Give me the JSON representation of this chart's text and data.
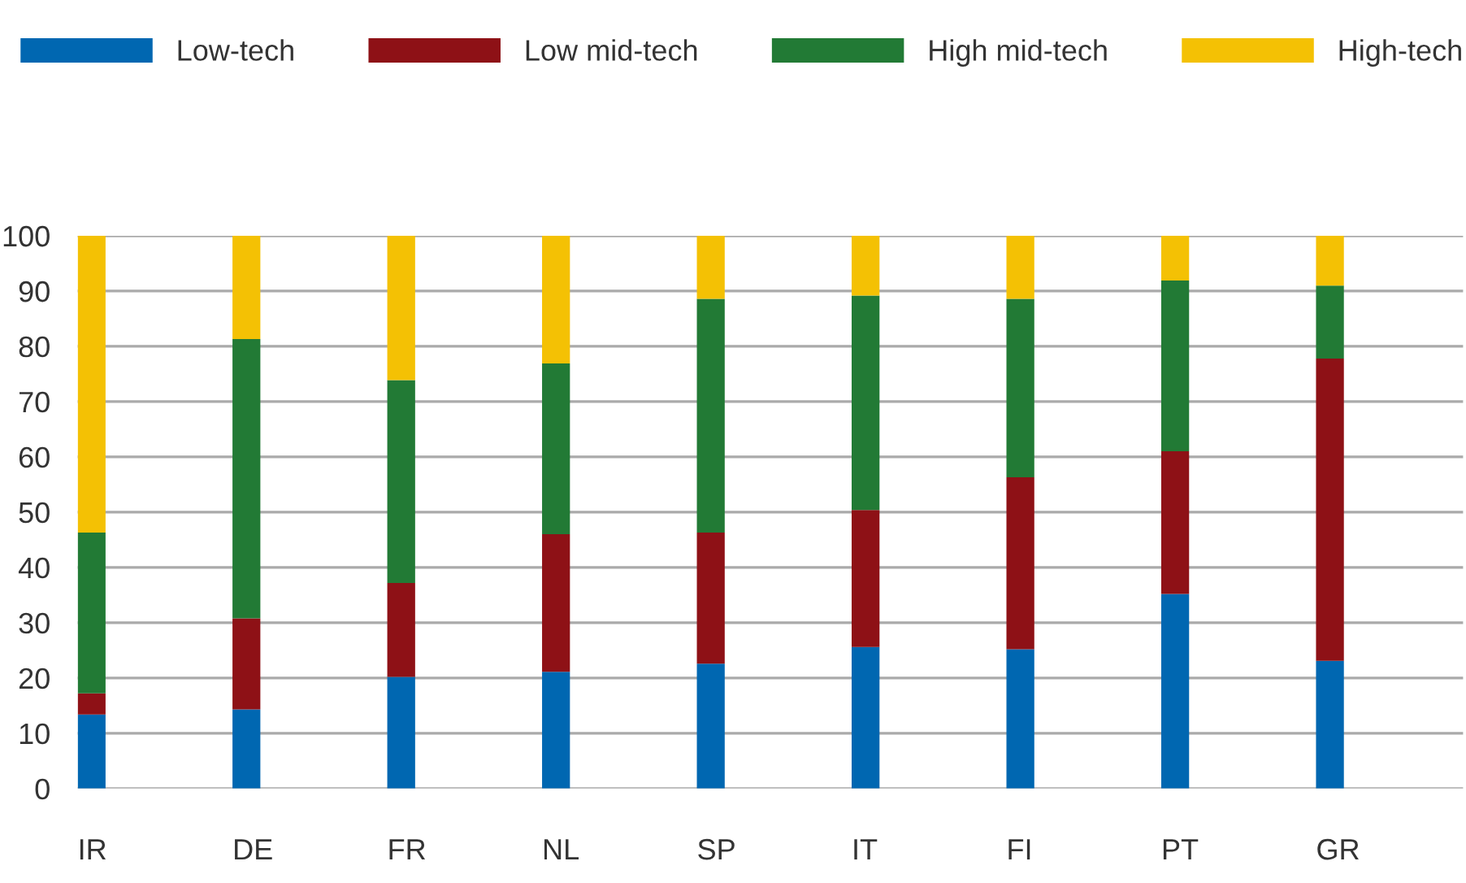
{
  "chart_data": {
    "type": "bar",
    "stacked": true,
    "categories": [
      "IR",
      "DE",
      "FR",
      "NL",
      "SP",
      "IT",
      "FI",
      "PT",
      "GR"
    ],
    "series": [
      {
        "name": "Low-tech",
        "color": "#0067b1",
        "values": [
          13.4,
          14.3,
          20.2,
          21.1,
          22.6,
          25.6,
          25.2,
          35.2,
          23.1
        ]
      },
      {
        "name": "Low mid-tech",
        "color": "#8e1116",
        "values": [
          3.8,
          16.5,
          17.0,
          24.9,
          23.7,
          24.8,
          31.1,
          25.8,
          54.7
        ]
      },
      {
        "name": "High mid-tech",
        "color": "#227a35",
        "values": [
          29.1,
          50.5,
          36.7,
          30.9,
          42.3,
          38.8,
          32.3,
          30.9,
          13.2
        ]
      },
      {
        "name": "High-tech",
        "color": "#f4c104",
        "values": [
          53.7,
          18.7,
          26.1,
          23.1,
          11.4,
          10.8,
          11.4,
          8.1,
          9.0
        ]
      }
    ],
    "ylim": [
      0,
      100
    ],
    "yticks": [
      0,
      10,
      20,
      30,
      40,
      50,
      60,
      70,
      80,
      90,
      100
    ],
    "grid": "y",
    "legend": "top left"
  }
}
